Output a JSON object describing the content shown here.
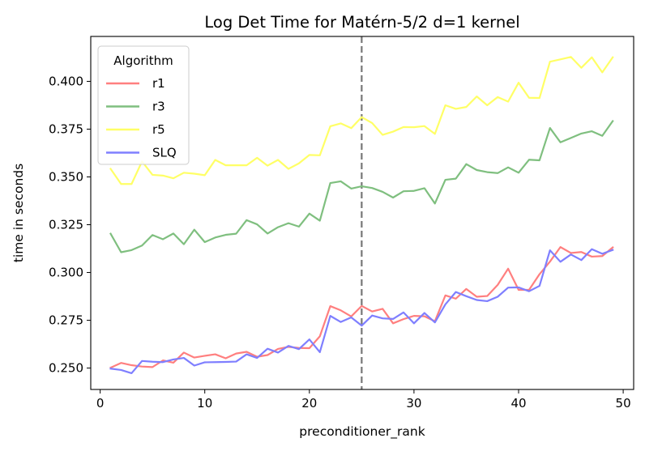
{
  "chart_data": {
    "type": "line",
    "title": "Log Det Time for Matérn-5/2 d=1 kernel",
    "xlabel": "preconditioner_rank",
    "ylabel": "time in seconds",
    "xlim": [
      -0.9,
      51.0
    ],
    "ylim": [
      0.2388,
      0.4235
    ],
    "xticks": [
      0,
      10,
      20,
      30,
      40,
      50
    ],
    "xtick_labels": [
      "0",
      "10",
      "20",
      "30",
      "40",
      "50"
    ],
    "yticks": [
      0.25,
      0.275,
      0.3,
      0.325,
      0.35,
      0.375,
      0.4
    ],
    "ytick_labels": [
      "0.250",
      "0.275",
      "0.300",
      "0.325",
      "0.350",
      "0.375",
      "0.400"
    ],
    "grid": false,
    "legend": {
      "title": "Algorithm",
      "position": "top-left"
    },
    "vline": {
      "x": 25,
      "style": "dashed",
      "color": "#777777"
    },
    "x": [
      1,
      2,
      3,
      4,
      5,
      6,
      7,
      8,
      9,
      10,
      11,
      12,
      13,
      14,
      15,
      16,
      17,
      18,
      19,
      20,
      21,
      22,
      23,
      24,
      25,
      26,
      27,
      28,
      29,
      30,
      31,
      32,
      33,
      34,
      35,
      36,
      37,
      38,
      39,
      40,
      41,
      42,
      43,
      44,
      45,
      46,
      47,
      48,
      49
    ],
    "series": [
      {
        "name": "r1",
        "color": "#ff7f7f",
        "values": [
          0.2502,
          0.2527,
          0.2515,
          0.2508,
          0.2505,
          0.254,
          0.2528,
          0.2581,
          0.2555,
          0.2564,
          0.2572,
          0.2551,
          0.2576,
          0.2585,
          0.2559,
          0.2568,
          0.26,
          0.2611,
          0.2605,
          0.2604,
          0.2666,
          0.2824,
          0.2802,
          0.277,
          0.2825,
          0.2796,
          0.281,
          0.2734,
          0.2756,
          0.2773,
          0.2771,
          0.2745,
          0.288,
          0.2863,
          0.2914,
          0.2873,
          0.2877,
          0.2935,
          0.302,
          0.2909,
          0.2909,
          0.2991,
          0.3057,
          0.3133,
          0.3102,
          0.3107,
          0.3083,
          0.3086,
          0.3131
        ]
      },
      {
        "name": "r3",
        "color": "#7fbf7f",
        "values": [
          0.3203,
          0.3106,
          0.3117,
          0.3141,
          0.3196,
          0.3174,
          0.3204,
          0.3148,
          0.3224,
          0.3159,
          0.3183,
          0.3197,
          0.3203,
          0.3274,
          0.3252,
          0.3204,
          0.3237,
          0.3258,
          0.324,
          0.3308,
          0.3271,
          0.3468,
          0.3477,
          0.3439,
          0.3451,
          0.3442,
          0.3422,
          0.3392,
          0.3425,
          0.3427,
          0.3441,
          0.3361,
          0.3485,
          0.3491,
          0.3567,
          0.3536,
          0.3525,
          0.352,
          0.355,
          0.3522,
          0.359,
          0.3587,
          0.3756,
          0.3681,
          0.3704,
          0.3727,
          0.3739,
          0.3715,
          0.3792
        ]
      },
      {
        "name": "r5",
        "color": "#ffff66",
        "values": [
          0.3542,
          0.3463,
          0.3463,
          0.3581,
          0.3511,
          0.3507,
          0.3493,
          0.3522,
          0.3517,
          0.3509,
          0.3589,
          0.3561,
          0.3561,
          0.3561,
          0.36,
          0.3559,
          0.3589,
          0.3542,
          0.3571,
          0.3615,
          0.3613,
          0.3765,
          0.378,
          0.3755,
          0.3813,
          0.3782,
          0.372,
          0.3737,
          0.3761,
          0.376,
          0.3766,
          0.3725,
          0.3875,
          0.3856,
          0.3866,
          0.3921,
          0.3875,
          0.3918,
          0.3894,
          0.3993,
          0.3914,
          0.3913,
          0.4103,
          0.4115,
          0.4128,
          0.4071,
          0.4126,
          0.4047,
          0.4126
        ]
      },
      {
        "name": "SLQ",
        "color": "#7f7fff",
        "values": [
          0.2497,
          0.249,
          0.2473,
          0.2537,
          0.2533,
          0.2531,
          0.2545,
          0.2553,
          0.2513,
          0.253,
          0.2531,
          0.2532,
          0.2534,
          0.2572,
          0.2553,
          0.2601,
          0.2581,
          0.2616,
          0.2599,
          0.265,
          0.2583,
          0.2773,
          0.2741,
          0.2765,
          0.2722,
          0.2775,
          0.276,
          0.2757,
          0.2791,
          0.2734,
          0.2788,
          0.2739,
          0.2833,
          0.2898,
          0.2876,
          0.2856,
          0.285,
          0.2873,
          0.2921,
          0.2922,
          0.2902,
          0.293,
          0.3116,
          0.3056,
          0.3094,
          0.3065,
          0.3122,
          0.3098,
          0.3118
        ]
      }
    ]
  }
}
